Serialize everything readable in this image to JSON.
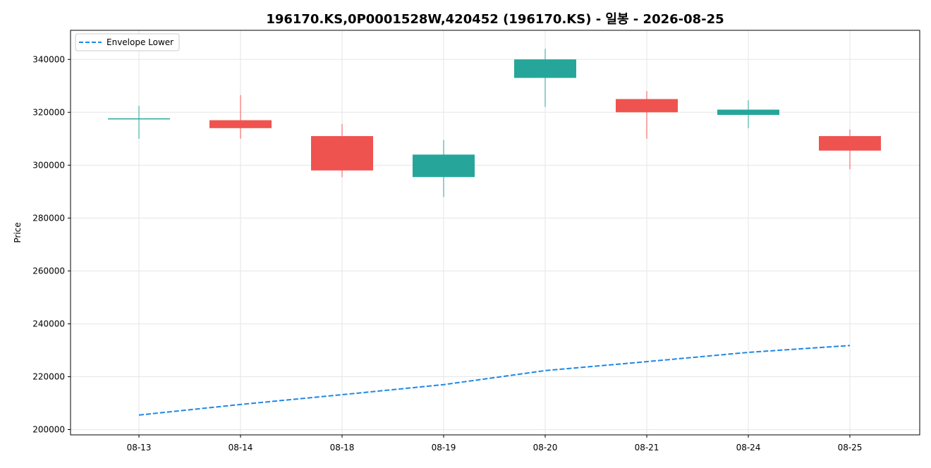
{
  "chart_data": {
    "type": "candlestick",
    "title": "196170.KS,0P0001528W,420452 (196170.KS) - 일봉 - 2026-08-25",
    "ylabel": "Price",
    "xlabel": "",
    "ylim": [
      198000,
      351000
    ],
    "yticks": [
      200000,
      220000,
      240000,
      260000,
      280000,
      300000,
      320000,
      340000
    ],
    "ytick_labels": [
      "200000",
      "220000",
      "240000",
      "260000",
      "280000",
      "300000",
      "320000",
      "340000"
    ],
    "categories": [
      "08-13",
      "08-14",
      "08-18",
      "08-19",
      "08-20",
      "08-21",
      "08-24",
      "08-25"
    ],
    "ohlc": [
      {
        "open": 317500,
        "high": 322500,
        "low": 310000,
        "close": 317500
      },
      {
        "open": 317000,
        "high": 326500,
        "low": 310000,
        "close": 314000
      },
      {
        "open": 311000,
        "high": 315500,
        "low": 295500,
        "close": 298000
      },
      {
        "open": 295500,
        "high": 309500,
        "low": 288000,
        "close": 304000
      },
      {
        "open": 333000,
        "high": 344000,
        "low": 322000,
        "close": 340000
      },
      {
        "open": 325000,
        "high": 328000,
        "low": 310000,
        "close": 320000
      },
      {
        "open": 319000,
        "high": 324500,
        "low": 314000,
        "close": 321000
      },
      {
        "open": 311000,
        "high": 313500,
        "low": 298500,
        "close": 305500
      }
    ],
    "series": [
      {
        "name": "Envelope Lower",
        "values": [
          205500,
          209500,
          213200,
          217000,
          222300,
          225700,
          229200,
          231800
        ]
      }
    ],
    "grid": true,
    "legend_position": "top-left",
    "colors": {
      "up": "#26a69a",
      "down": "#ef5350",
      "envelope": "#1e88e5",
      "grid": "#e6e6e6"
    }
  }
}
